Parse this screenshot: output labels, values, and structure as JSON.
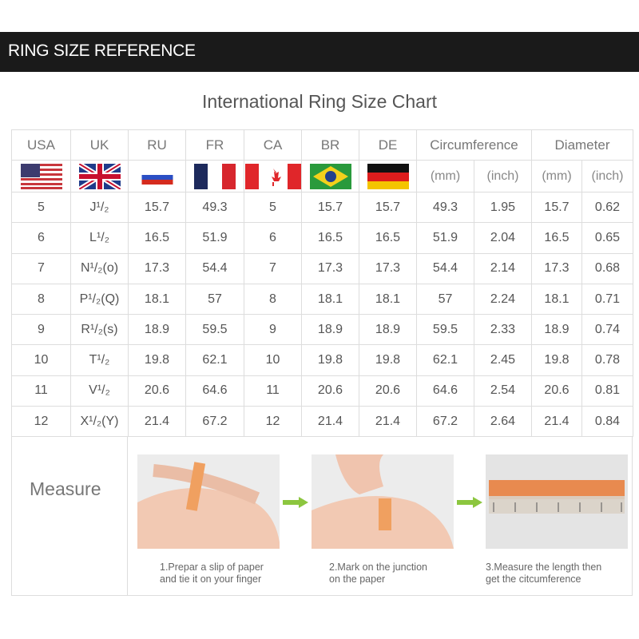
{
  "banner": "RING SIZE REFERENCE",
  "title": "International Ring Size Chart",
  "headers": [
    "USA",
    "UK",
    "RU",
    "FR",
    "CA",
    "BR",
    "DE",
    "Circumference",
    "Diameter"
  ],
  "units": [
    "(mm)",
    "(inch)",
    "(mm)",
    "(inch)"
  ],
  "flags": [
    "usa-flag",
    "uk-flag",
    "russia-flag",
    "france-flag",
    "canada-flag",
    "brazil-flag",
    "germany-flag"
  ],
  "rows": [
    [
      "5",
      "J¹/₂",
      "15.7",
      "49.3",
      "5",
      "15.7",
      "15.7",
      "49.3",
      "1.95",
      "15.7",
      "0.62"
    ],
    [
      "6",
      "L¹/₂",
      "16.5",
      "51.9",
      "6",
      "16.5",
      "16.5",
      "51.9",
      "2.04",
      "16.5",
      "0.65"
    ],
    [
      "7",
      "N¹/₂(o)",
      "17.3",
      "54.4",
      "7",
      "17.3",
      "17.3",
      "54.4",
      "2.14",
      "17.3",
      "0.68"
    ],
    [
      "8",
      "P¹/₂(Q)",
      "18.1",
      "57",
      "8",
      "18.1",
      "18.1",
      "57",
      "2.24",
      "18.1",
      "0.71"
    ],
    [
      "9",
      "R¹/₂(s)",
      "18.9",
      "59.5",
      "9",
      "18.9",
      "18.9",
      "59.5",
      "2.33",
      "18.9",
      "0.74"
    ],
    [
      "10",
      "T¹/₂",
      "19.8",
      "62.1",
      "10",
      "19.8",
      "19.8",
      "62.1",
      "2.45",
      "19.8",
      "0.78"
    ],
    [
      "11",
      "V¹/₂",
      "20.6",
      "64.6",
      "11",
      "20.6",
      "20.6",
      "64.6",
      "2.54",
      "20.6",
      "0.81"
    ],
    [
      "12",
      "X¹/₂(Y)",
      "21.4",
      "67.2",
      "12",
      "21.4",
      "21.4",
      "67.2",
      "2.64",
      "21.4",
      "0.84"
    ]
  ],
  "measure": {
    "label": "Measure",
    "steps": [
      {
        "line1": "1.Prepar a slip of paper",
        "line2": "and tie it on your finger"
      },
      {
        "line1": "2.Mark on the junction",
        "line2": "on the paper"
      },
      {
        "line1": "3.Measure the length then",
        "line2": "get the citcumference"
      }
    ],
    "arrow_color": "#8cc63f"
  }
}
